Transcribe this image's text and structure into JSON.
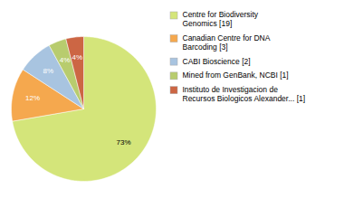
{
  "chart_data": {
    "type": "pie",
    "categories": [
      "Centre for Biodiversity\nGenomics [19]",
      "Canadian Centre for DNA\nBarcoding [3]",
      "CABI Bioscience [2]",
      "Mined from GenBank, NCBI [1]",
      "Instituto de Investigacion de\nRecursos Biologicos Alexander... [1]"
    ],
    "values": [
      73,
      12,
      8,
      4,
      4
    ],
    "value_labels": [
      "73%",
      "12%",
      "8%",
      "4%",
      "4%"
    ],
    "colors": [
      "#d4e57a",
      "#f5a84e",
      "#a8c4e0",
      "#b8cc6e",
      "#cc6644"
    ],
    "data_labels": true,
    "legend": "right"
  }
}
